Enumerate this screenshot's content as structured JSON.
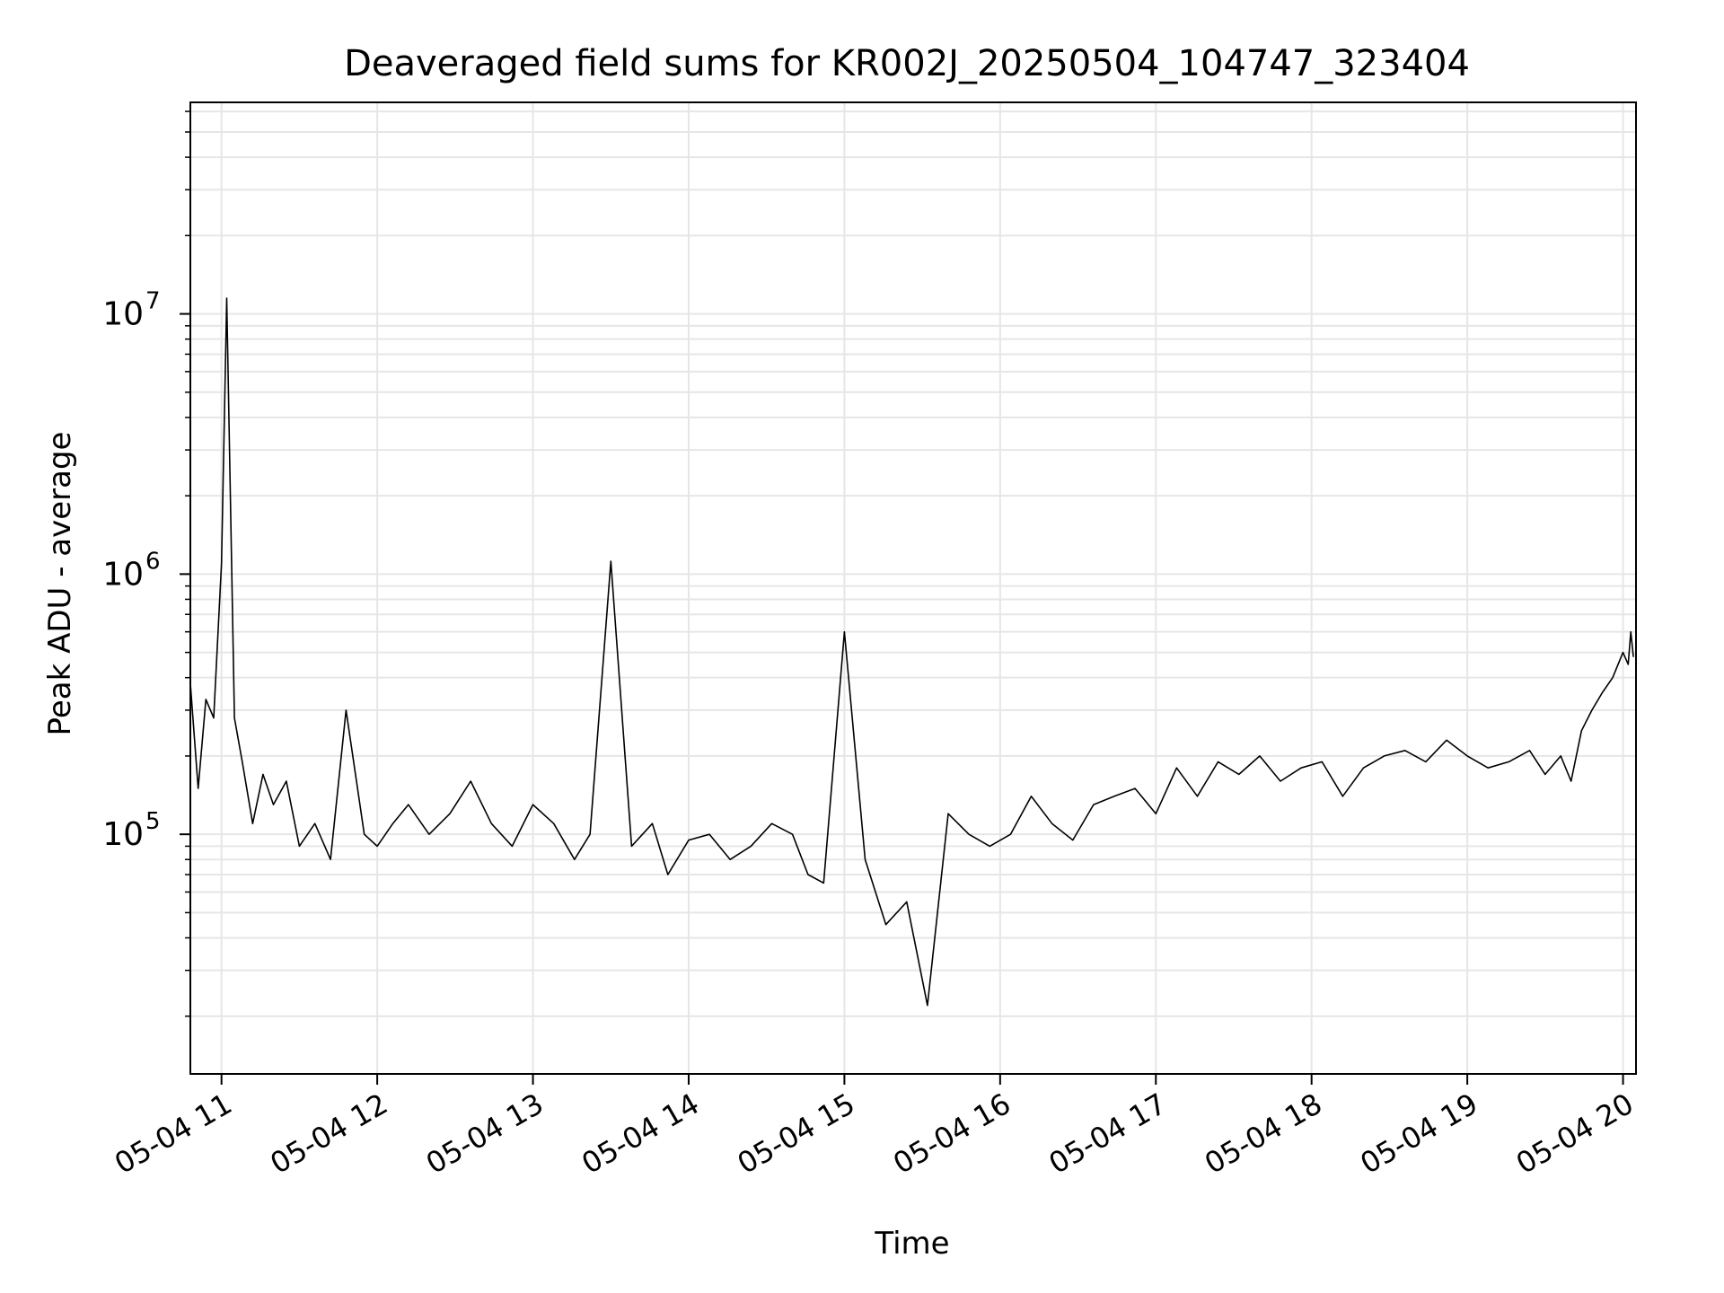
{
  "chart_data": {
    "type": "line",
    "title": "Deaveraged field sums for KR002J_20250504_104747_323404",
    "xlabel": "Time",
    "ylabel": "Peak ADU - average",
    "yscale": "log",
    "xlim": [
      "2025-05-04 10:48",
      "2025-05-04 20:05"
    ],
    "ylim": [
      12000,
      65000000
    ],
    "x_tick_labels": [
      "05-04 11",
      "05-04 12",
      "05-04 13",
      "05-04 14",
      "05-04 15",
      "05-04 16",
      "05-04 17",
      "05-04 18",
      "05-04 19",
      "05-04 20"
    ],
    "y_tick_labels": [
      {
        "base": "10",
        "exp": "5"
      },
      {
        "base": "10",
        "exp": "6"
      },
      {
        "base": "10",
        "exp": "7"
      }
    ],
    "grid": true,
    "line_color": "#000000",
    "series": [
      {
        "x": [
          "2025-05-04 10:48",
          "2025-05-04 10:51",
          "2025-05-04 10:54",
          "2025-05-04 10:57",
          "2025-05-04 11:00",
          "2025-05-04 11:02",
          "2025-05-04 11:05",
          "2025-05-04 11:08",
          "2025-05-04 11:12",
          "2025-05-04 11:16",
          "2025-05-04 11:20",
          "2025-05-04 11:25",
          "2025-05-04 11:30",
          "2025-05-04 11:36",
          "2025-05-04 11:42",
          "2025-05-04 11:48",
          "2025-05-04 11:55",
          "2025-05-04 12:00",
          "2025-05-04 12:06",
          "2025-05-04 12:12",
          "2025-05-04 12:20",
          "2025-05-04 12:28",
          "2025-05-04 12:36",
          "2025-05-04 12:44",
          "2025-05-04 12:52",
          "2025-05-04 13:00",
          "2025-05-04 13:08",
          "2025-05-04 13:16",
          "2025-05-04 13:22",
          "2025-05-04 13:30",
          "2025-05-04 13:38",
          "2025-05-04 13:46",
          "2025-05-04 13:52",
          "2025-05-04 14:00",
          "2025-05-04 14:08",
          "2025-05-04 14:16",
          "2025-05-04 14:24",
          "2025-05-04 14:32",
          "2025-05-04 14:40",
          "2025-05-04 14:46",
          "2025-05-04 14:52",
          "2025-05-04 15:00",
          "2025-05-04 15:08",
          "2025-05-04 15:16",
          "2025-05-04 15:24",
          "2025-05-04 15:32",
          "2025-05-04 15:40",
          "2025-05-04 15:48",
          "2025-05-04 15:56",
          "2025-05-04 16:04",
          "2025-05-04 16:12",
          "2025-05-04 16:20",
          "2025-05-04 16:28",
          "2025-05-04 16:36",
          "2025-05-04 16:44",
          "2025-05-04 16:52",
          "2025-05-04 17:00",
          "2025-05-04 17:08",
          "2025-05-04 17:16",
          "2025-05-04 17:24",
          "2025-05-04 17:32",
          "2025-05-04 17:40",
          "2025-05-04 17:48",
          "2025-05-04 17:56",
          "2025-05-04 18:04",
          "2025-05-04 18:12",
          "2025-05-04 18:20",
          "2025-05-04 18:28",
          "2025-05-04 18:36",
          "2025-05-04 18:44",
          "2025-05-04 18:52",
          "2025-05-04 19:00",
          "2025-05-04 19:08",
          "2025-05-04 19:16",
          "2025-05-04 19:24",
          "2025-05-04 19:30",
          "2025-05-04 19:36",
          "2025-05-04 19:40",
          "2025-05-04 19:44",
          "2025-05-04 19:48",
          "2025-05-04 19:52",
          "2025-05-04 19:56",
          "2025-05-04 20:00",
          "2025-05-04 20:02",
          "2025-05-04 20:03",
          "2025-05-04 20:04"
        ],
        "y": [
          380000,
          150000,
          330000,
          280000,
          1100000,
          11500000,
          280000,
          190000,
          110000,
          170000,
          130000,
          160000,
          90000,
          110000,
          80000,
          300000,
          100000,
          90000,
          110000,
          130000,
          100000,
          120000,
          160000,
          110000,
          90000,
          130000,
          110000,
          80000,
          100000,
          1120000,
          90000,
          110000,
          70000,
          95000,
          100000,
          80000,
          90000,
          110000,
          100000,
          70000,
          65000,
          600000,
          80000,
          45000,
          55000,
          22000,
          120000,
          100000,
          90000,
          100000,
          140000,
          110000,
          95000,
          130000,
          140000,
          150000,
          120000,
          180000,
          140000,
          190000,
          170000,
          200000,
          160000,
          180000,
          190000,
          140000,
          180000,
          200000,
          210000,
          190000,
          230000,
          200000,
          180000,
          190000,
          210000,
          170000,
          200000,
          160000,
          250000,
          300000,
          350000,
          400000,
          500000,
          450000,
          600000,
          480000
        ]
      }
    ]
  }
}
